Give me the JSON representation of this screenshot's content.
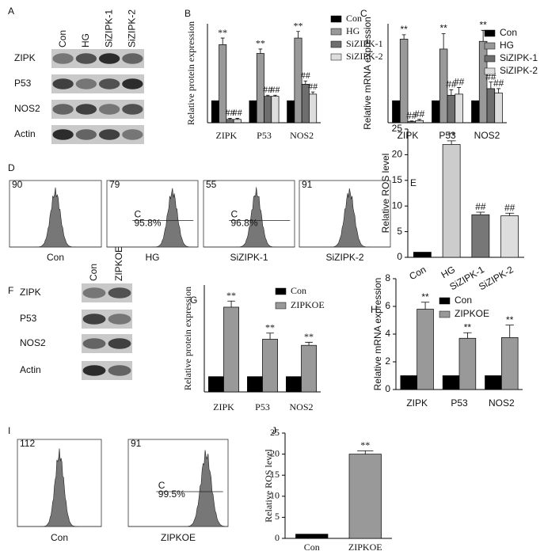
{
  "panel_letters": [
    "A",
    "B",
    "C",
    "D",
    "E",
    "F",
    "G",
    "H",
    "I",
    "J"
  ],
  "blots": [
    {
      "lanes": [
        "Con",
        "HG",
        "SiZIPK-1",
        "SiZIPK-2"
      ],
      "rows": [
        "ZIPK",
        "P53",
        "NOS2",
        "Actin"
      ]
    },
    {
      "lanes": [
        "Con",
        "ZIPKOE"
      ],
      "rows": [
        "ZIPK",
        "P53",
        "NOS2",
        "Actin"
      ]
    }
  ],
  "flows": [
    {
      "samples": [
        {
          "name": "Con",
          "ymax": 90
        },
        {
          "name": "HG",
          "ymax": 79,
          "gate": "C",
          "percent": "95.8%"
        },
        {
          "name": "SiZIPK-1",
          "ymax": 55,
          "gate": "C",
          "percent": "96.8%"
        },
        {
          "name": "SiZIPK-2",
          "ymax": 91
        }
      ]
    },
    {
      "samples": [
        {
          "name": "Con",
          "ymax": 112
        },
        {
          "name": "ZIPKOE",
          "ymax": 91,
          "gate": "C",
          "percent": "99.5%"
        }
      ]
    }
  ],
  "chart_data": [
    {
      "type": "bar",
      "y_label": "Relative protein expression",
      "categories": [
        "ZIPK",
        "P53",
        "NOS2"
      ],
      "ylim": [
        0,
        4.5
      ],
      "series": [
        {
          "name": "Con",
          "color": "#000000",
          "values": [
            1,
            1,
            1
          ],
          "errors": [
            0,
            0,
            0
          ],
          "annotations": [
            null,
            null,
            null
          ]
        },
        {
          "name": "HG",
          "color": "#999999",
          "values": [
            3.55,
            3.15,
            3.85
          ],
          "errors": [
            0.3,
            0.2,
            0.3
          ],
          "annotations": [
            "**",
            "**",
            "**"
          ]
        },
        {
          "name": "SiZIPK-1",
          "color": "#6e6e6e",
          "values": [
            0.15,
            1.2,
            1.75
          ],
          "errors": [
            0.05,
            0.05,
            0.15
          ],
          "annotations": [
            "##",
            "##",
            "##"
          ]
        },
        {
          "name": "SiZIPK-2",
          "color": "#dddddd",
          "values": [
            0.15,
            1.2,
            1.3
          ],
          "errors": [
            0.05,
            0.05,
            0.1
          ],
          "annotations": [
            "##",
            "##",
            "##"
          ]
        }
      ]
    },
    {
      "type": "bar",
      "y_label": "Relative mRNA expression",
      "categories": [
        "ZIPK",
        "P53",
        "NOS2"
      ],
      "ylim": [
        0,
        4.5
      ],
      "series": [
        {
          "name": "Con",
          "color": "#000000",
          "values": [
            1,
            1,
            1
          ],
          "errors": [
            0,
            0,
            0
          ],
          "annotations": [
            null,
            null,
            null
          ]
        },
        {
          "name": "HG",
          "color": "#999999",
          "values": [
            3.8,
            3.35,
            3.7
          ],
          "errors": [
            0.2,
            0.7,
            0.5
          ],
          "annotations": [
            "**",
            "**",
            "**"
          ]
        },
        {
          "name": "SiZIPK-1",
          "color": "#6e6e6e",
          "values": [
            0.05,
            1.25,
            1.55
          ],
          "errors": [
            0.03,
            0.25,
            0.3
          ],
          "annotations": [
            "##",
            "##",
            "##"
          ]
        },
        {
          "name": "SiZIPK-2",
          "color": "#dddddd",
          "values": [
            0.1,
            1.3,
            1.35
          ],
          "errors": [
            0.05,
            0.3,
            0.2
          ],
          "annotations": [
            "##",
            "##",
            "##"
          ]
        }
      ]
    },
    {
      "type": "bar",
      "y_label": "Relative ROS level",
      "categories": [
        "Con",
        "HG",
        "SiZIPK-1",
        "SiZIPK-2"
      ],
      "values": [
        1,
        22,
        8.3,
        8.1
      ],
      "errors": [
        0,
        0.7,
        0.5,
        0.5
      ],
      "colors": [
        "#000000",
        "#cccccc",
        "#777777",
        "#dddddd"
      ],
      "annotations": [
        null,
        "**",
        "##",
        "##"
      ],
      "ylim": [
        0,
        25
      ],
      "yticks": [
        0,
        5,
        10,
        15,
        20,
        25
      ]
    },
    {
      "type": "bar",
      "y_label": "Relative protein expression",
      "categories": [
        "ZIPK",
        "P53",
        "NOS2"
      ],
      "ylim": [
        0,
        7
      ],
      "series": [
        {
          "name": "Con",
          "color": "#000000",
          "values": [
            1,
            1,
            1
          ],
          "errors": [
            0,
            0,
            0
          ],
          "annotations": [
            null,
            null,
            null
          ]
        },
        {
          "name": "ZIPKOE",
          "color": "#999999",
          "values": [
            5.55,
            3.45,
            3.05
          ],
          "errors": [
            0.4,
            0.4,
            0.2
          ],
          "annotations": [
            "**",
            "**",
            "**"
          ]
        }
      ]
    },
    {
      "type": "bar",
      "y_label": "Relative mRNA expression",
      "categories": [
        "ZIPK",
        "P53",
        "NOS2"
      ],
      "ylim": [
        0,
        8
      ],
      "yticks": [
        0,
        2,
        4,
        6,
        8
      ],
      "series": [
        {
          "name": "Con",
          "color": "#000000",
          "values": [
            1,
            1,
            1
          ],
          "errors": [
            0,
            0,
            0
          ],
          "annotations": [
            null,
            null,
            null
          ]
        },
        {
          "name": "ZIPKOE",
          "color": "#999999",
          "values": [
            5.8,
            3.7,
            3.75
          ],
          "errors": [
            0.5,
            0.4,
            0.9
          ],
          "annotations": [
            "**",
            "**",
            "**"
          ]
        }
      ]
    },
    {
      "type": "bar",
      "y_label": "Relative ROS level",
      "categories": [
        "Con",
        "ZIPKOE"
      ],
      "values": [
        1,
        20
      ],
      "errors": [
        0,
        0.8
      ],
      "colors": [
        "#000000",
        "#999999"
      ],
      "annotations": [
        null,
        "**"
      ],
      "ylim": [
        0,
        25
      ],
      "yticks": [
        0,
        5,
        10,
        15,
        20,
        25
      ]
    }
  ]
}
